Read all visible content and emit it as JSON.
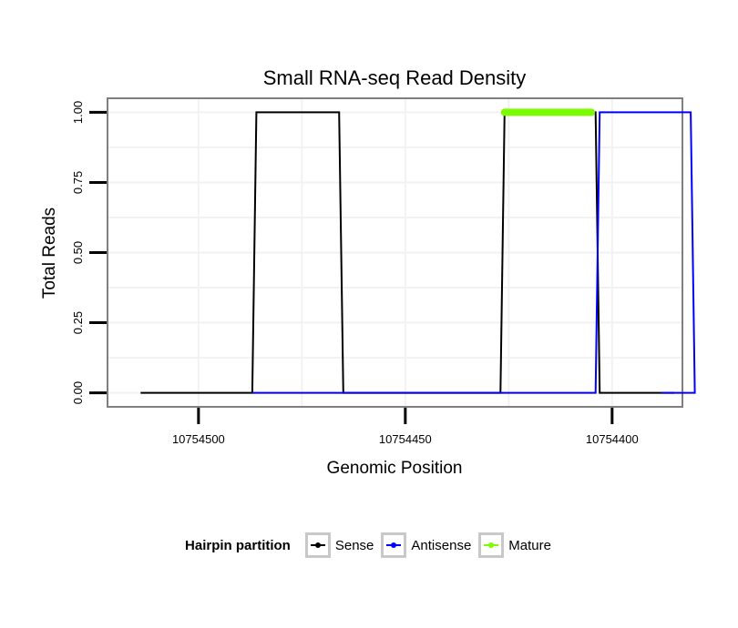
{
  "chart_data": {
    "type": "line",
    "title": "Small RNA-seq Read Density",
    "xlabel": "Genomic Position",
    "ylabel": "Total Reads",
    "x_reversed": true,
    "xlim": [
      10754522,
      10754383
    ],
    "ylim": [
      -0.05,
      1.05
    ],
    "x_ticks": [
      {
        "value": 10754500,
        "label": "10754500"
      },
      {
        "value": 10754450,
        "label": "10754450"
      },
      {
        "value": 10754400,
        "label": "10754400"
      }
    ],
    "y_ticks": [
      {
        "value": 0,
        "label": "0.00"
      },
      {
        "value": 0.25,
        "label": "0.25"
      },
      {
        "value": 0.5,
        "label": "0.50"
      },
      {
        "value": 0.75,
        "label": "0.75"
      },
      {
        "value": 1,
        "label": "1.00"
      }
    ],
    "series": [
      {
        "name": "Sense",
        "color": "#000000",
        "x": [
          10754514,
          10754487,
          10754486,
          10754466,
          10754465,
          10754427,
          10754426,
          10754404,
          10754403,
          10754385
        ],
        "y": [
          0,
          0,
          1,
          1,
          0,
          0,
          1,
          1,
          0,
          0
        ]
      },
      {
        "name": "Antisense",
        "color": "#0000ff",
        "x": [
          10754487,
          10754466,
          10754404,
          10754403,
          10754381,
          10754380,
          10754388
        ],
        "y": [
          0,
          0,
          0,
          1,
          1,
          0,
          0
        ]
      },
      {
        "name": "Mature",
        "color": "#7cfc00",
        "x": [
          10754426,
          10754405
        ],
        "y": [
          1,
          1
        ]
      }
    ],
    "legend": {
      "title": "Hairpin partition",
      "position": "bottom",
      "entries": [
        {
          "label": "Sense",
          "color": "#000000"
        },
        {
          "label": "Antisense",
          "color": "#0000ff"
        },
        {
          "label": "Mature",
          "color": "#7cfc00"
        }
      ]
    }
  }
}
